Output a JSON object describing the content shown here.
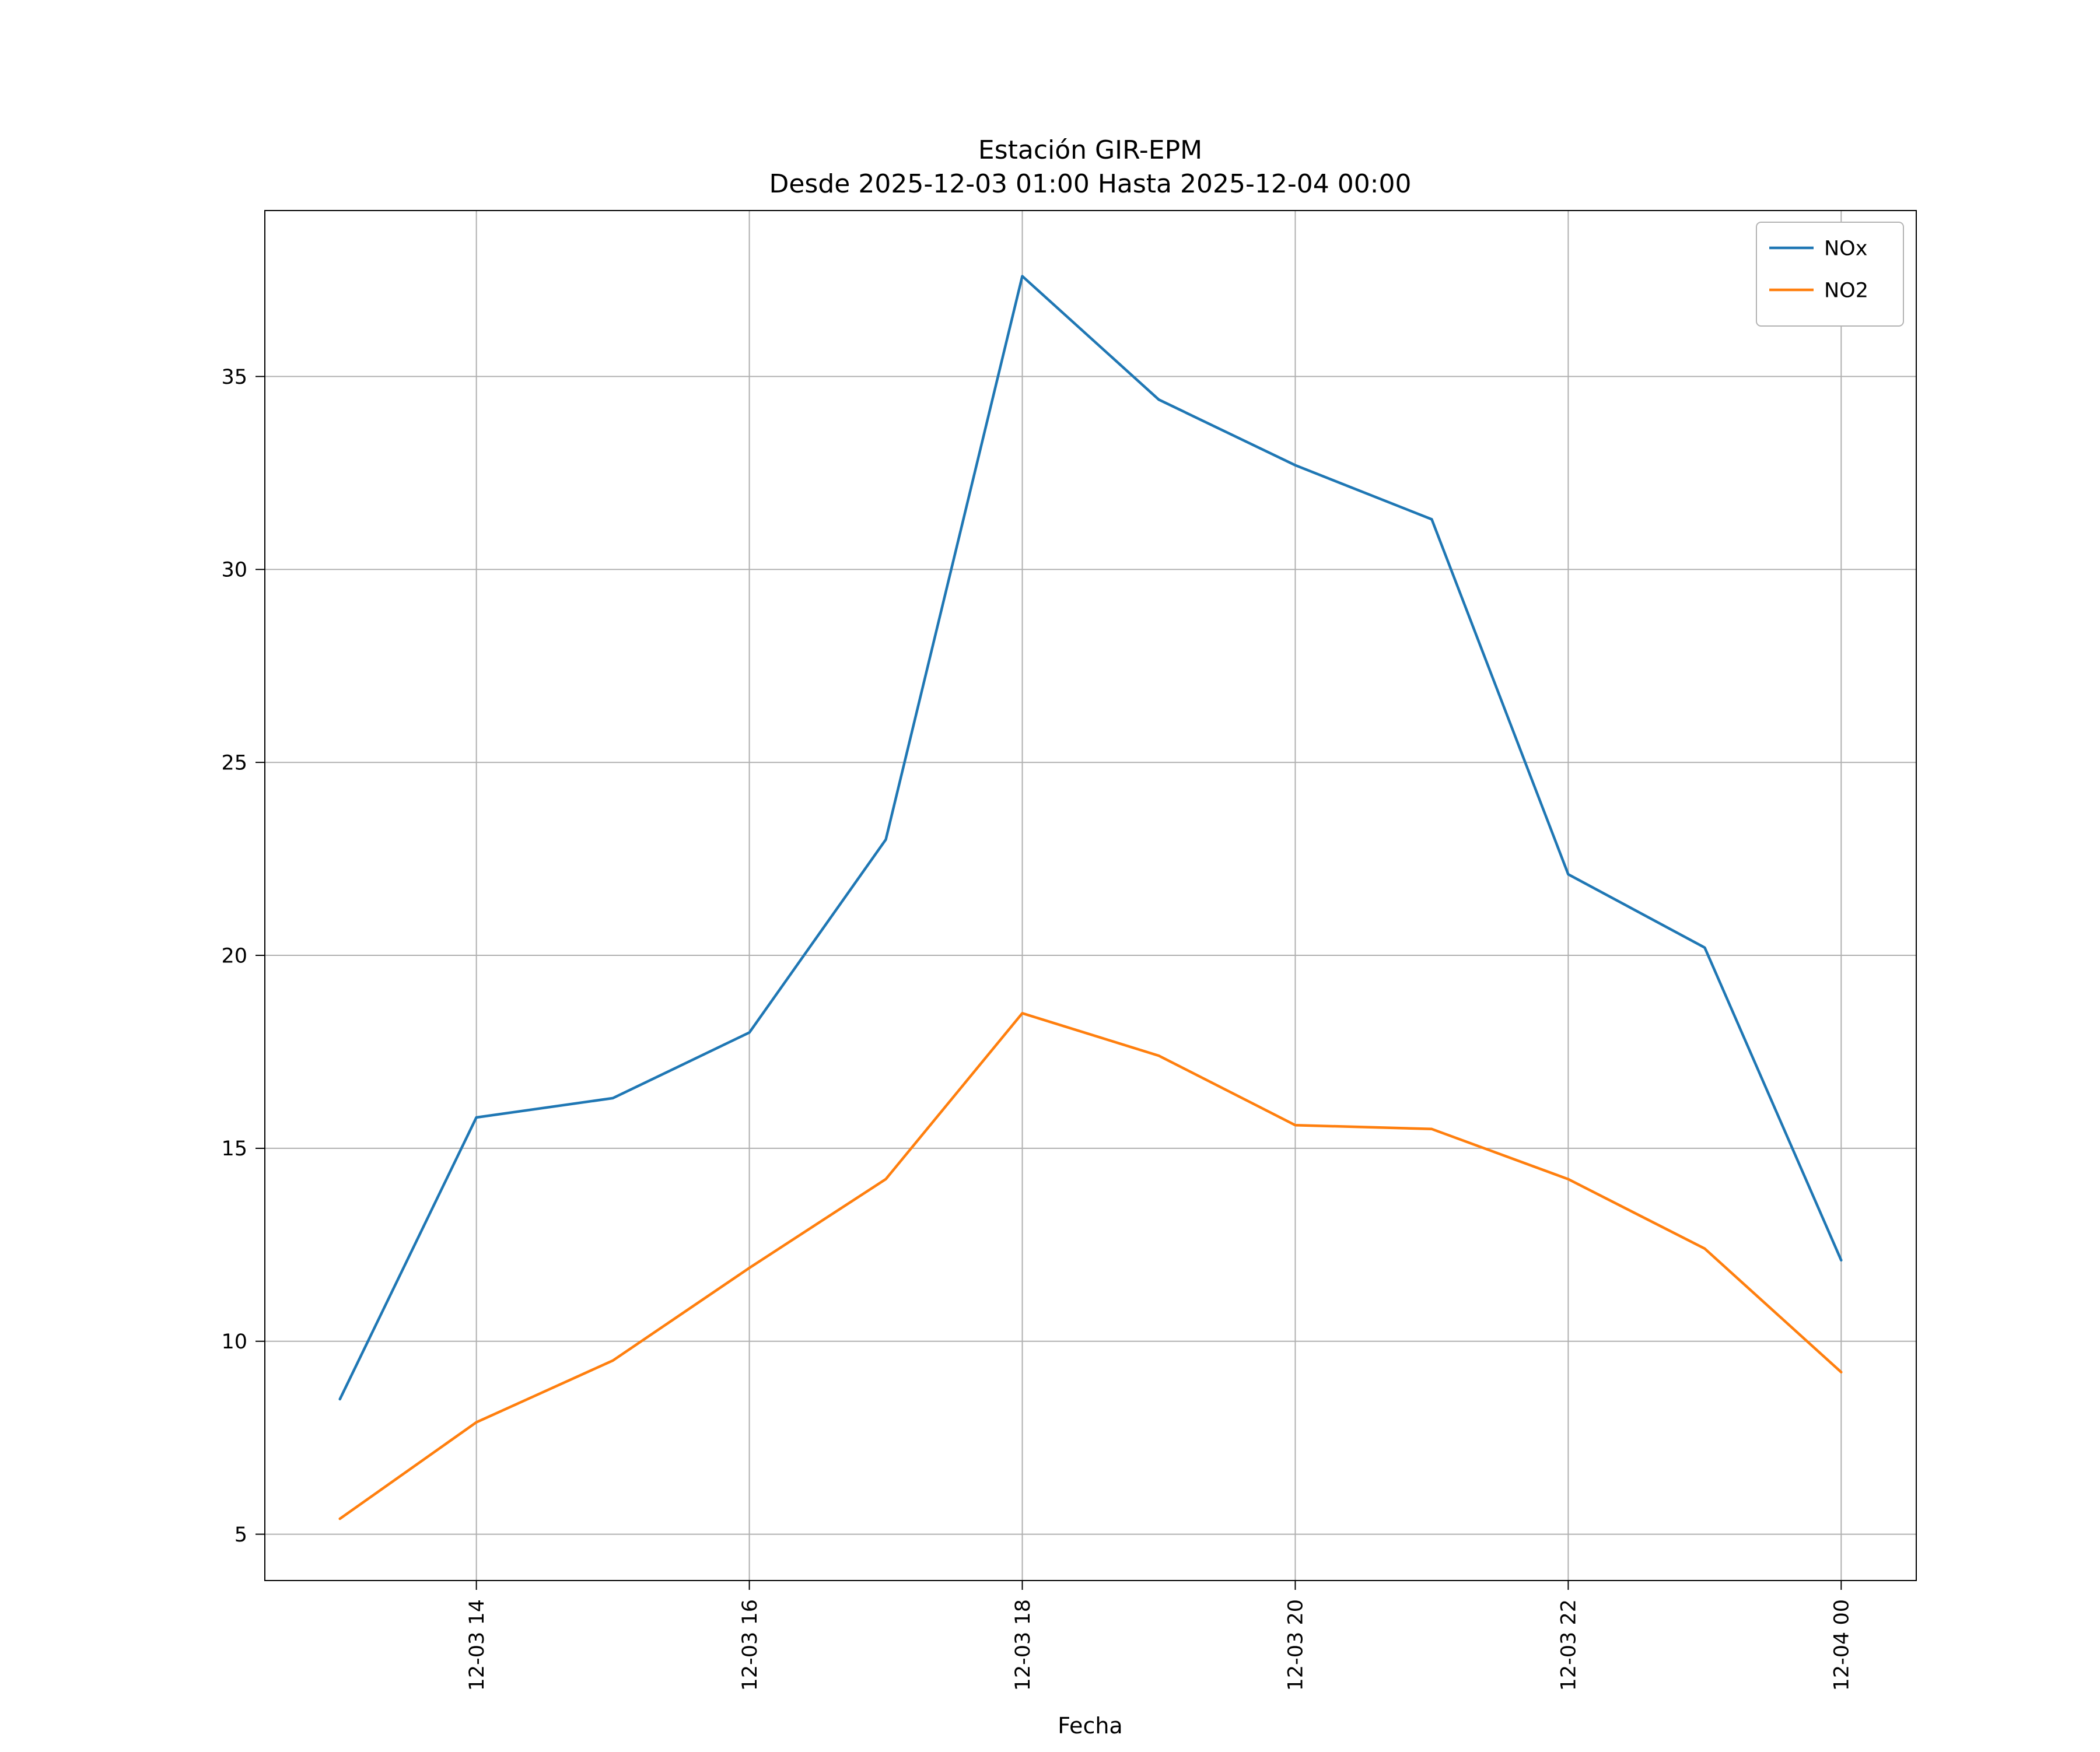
{
  "chart": {
    "title_line1": "Estación GIR-EPM",
    "title_line2": "Desde 2025-12-03 01:00 Hasta 2025-12-04 00:00",
    "xlabel": "Fecha"
  },
  "chart_data": {
    "type": "line",
    "title": "Estación GIR-EPM\nDesde 2025-12-03 01:00 Hasta 2025-12-04 00:00",
    "xlabel": "Fecha",
    "ylabel": "",
    "grid": true,
    "legend_position": "upper right",
    "xlim": [
      12.45,
      24.55
    ],
    "ylim": [
      3.8,
      39.3
    ],
    "x": [
      13,
      14,
      15,
      16,
      17,
      18,
      19,
      20,
      21,
      22,
      23,
      24
    ],
    "x_ticks": [
      {
        "value": 14,
        "label": "12-03 14"
      },
      {
        "value": 16,
        "label": "12-03 16"
      },
      {
        "value": 18,
        "label": "12-03 18"
      },
      {
        "value": 20,
        "label": "12-03 20"
      },
      {
        "value": 22,
        "label": "12-03 22"
      },
      {
        "value": 24,
        "label": "12-04 00"
      }
    ],
    "y_ticks": [
      5,
      10,
      15,
      20,
      25,
      30,
      35
    ],
    "series": [
      {
        "name": "NOx",
        "color": "#1f77b4",
        "values": [
          8.5,
          15.8,
          16.3,
          18.0,
          23.0,
          37.6,
          34.4,
          32.7,
          31.3,
          22.1,
          20.2,
          12.1
        ]
      },
      {
        "name": "NO2",
        "color": "#ff7f0e",
        "values": [
          5.4,
          7.9,
          9.5,
          11.9,
          14.2,
          18.5,
          17.4,
          15.6,
          15.5,
          14.2,
          12.4,
          9.2
        ]
      }
    ],
    "colors": {
      "grid": "#b0b0b0",
      "spine": "#000000",
      "legend_border": "#b3b3b3",
      "legend_background": "#ffffff"
    }
  }
}
